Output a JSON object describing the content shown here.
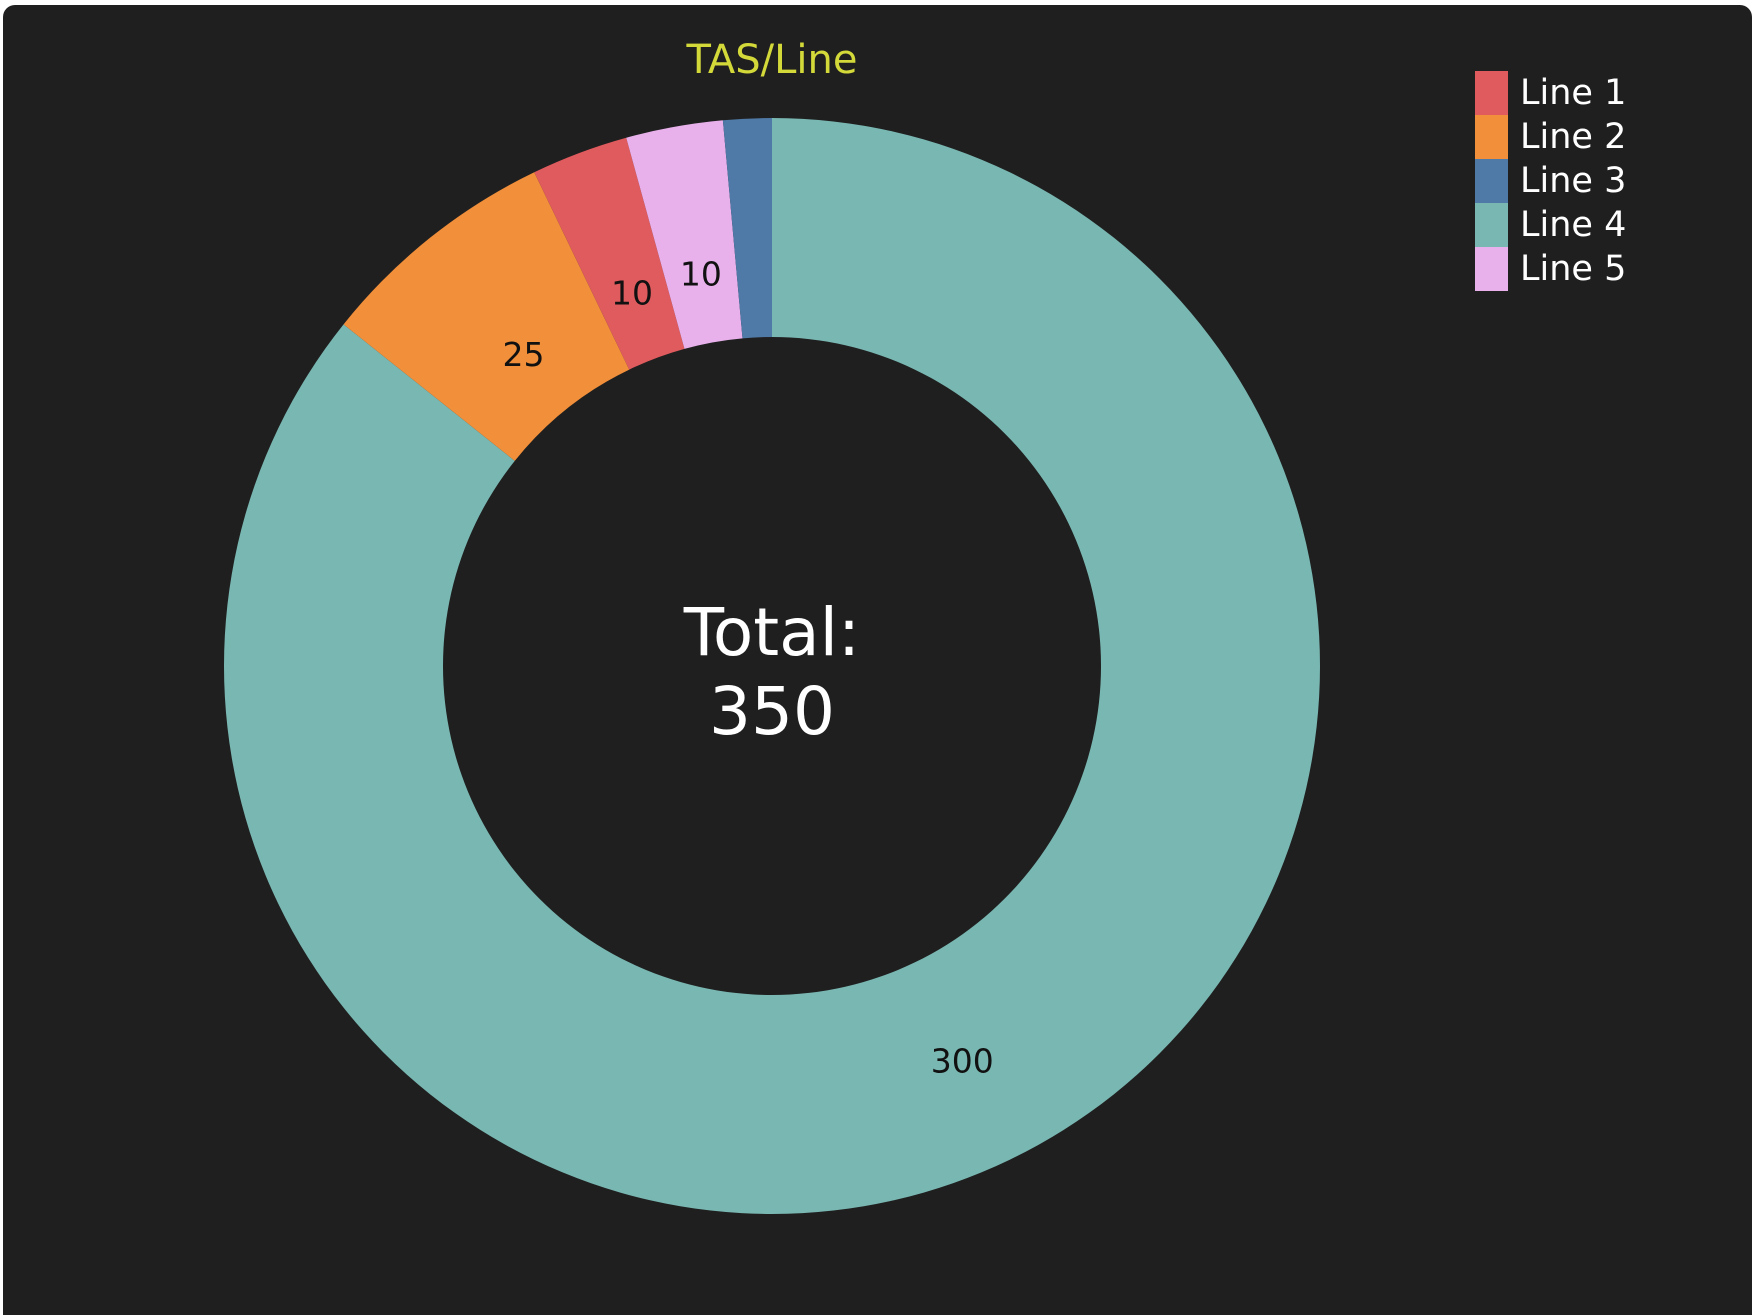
{
  "chart_data": {
    "type": "pie",
    "title": "TAS/Line",
    "categories": [
      "Line 1",
      "Line 2",
      "Line 3",
      "Line 4",
      "Line 5"
    ],
    "values": [
      10,
      25,
      5,
      300,
      10
    ],
    "colors": [
      "#e05b5e",
      "#f18f3a",
      "#4f79a6",
      "#79b7b2",
      "#e8b1ec"
    ],
    "data_labels": [
      "10",
      "25",
      "",
      "300",
      "10"
    ],
    "slice_order": [
      "Line 4",
      "Line 2",
      "Line 1",
      "Line 5",
      "Line 3"
    ],
    "donut": true,
    "center_label": {
      "line1": "Total:",
      "line2": "350"
    },
    "legend_position": "top-right",
    "title_color": "#d4d93a",
    "background_color": "#1f1f1f"
  }
}
